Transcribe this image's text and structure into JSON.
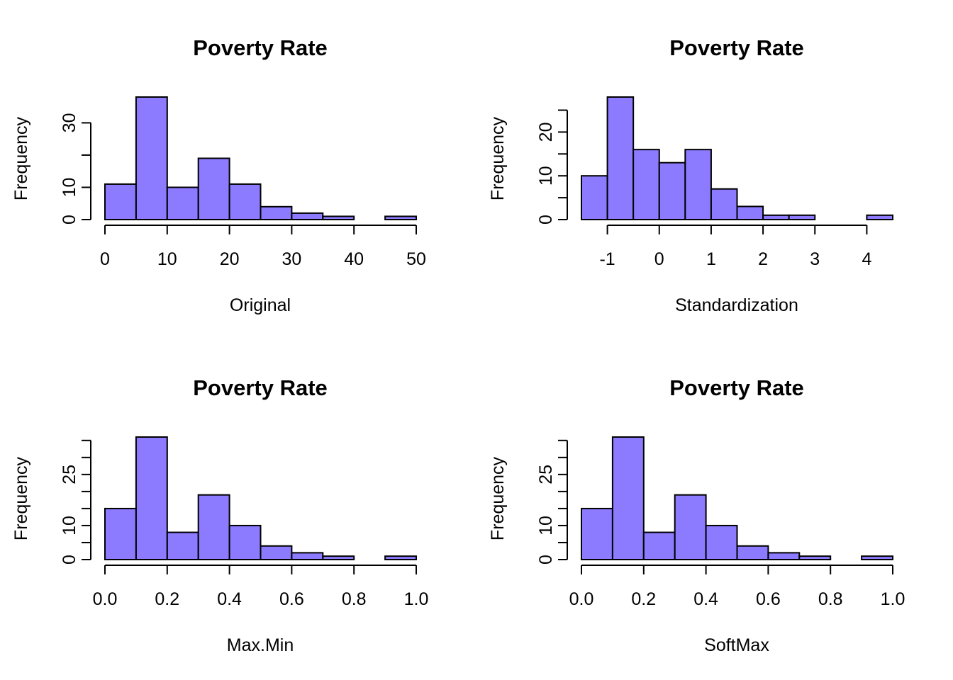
{
  "colors": {
    "bar_fill": "#8C7BFF",
    "bar_stroke": "#000000",
    "background": "#ffffff"
  },
  "chart_data": [
    {
      "type": "bar",
      "title": "Poverty Rate",
      "xlabel": "Original",
      "ylabel": "Frequency",
      "bin_edges": [
        0,
        5,
        10,
        15,
        20,
        25,
        30,
        35,
        40,
        45,
        50
      ],
      "values": [
        11,
        38,
        10,
        19,
        11,
        4,
        2,
        1,
        0,
        1
      ],
      "xticks": [
        0,
        10,
        20,
        30,
        40,
        50
      ],
      "xtick_labels": [
        "0",
        "10",
        "20",
        "30",
        "40",
        "50"
      ],
      "yticks": [
        0,
        10,
        20,
        30
      ],
      "ytick_labels": [
        "0",
        "10",
        "",
        "30"
      ],
      "xlim": [
        0,
        50
      ],
      "ylim": [
        0,
        38
      ],
      "grid": false
    },
    {
      "type": "bar",
      "title": "Poverty Rate",
      "xlabel": "Standardization",
      "ylabel": "Frequency",
      "bin_edges": [
        -1.5,
        -1,
        -0.5,
        0,
        0.5,
        1,
        1.5,
        2,
        2.5,
        3,
        3.5,
        4,
        4.5
      ],
      "values": [
        10,
        28,
        16,
        13,
        16,
        7,
        3,
        1,
        1,
        0,
        0,
        1
      ],
      "xticks": [
        -1,
        0,
        1,
        2,
        3,
        4
      ],
      "xtick_labels": [
        "-1",
        "0",
        "1",
        "2",
        "3",
        "4"
      ],
      "yticks": [
        0,
        5,
        10,
        15,
        20,
        25
      ],
      "ytick_labels": [
        "0",
        "",
        "10",
        "",
        "20",
        ""
      ],
      "xlim": [
        -1.5,
        4.5
      ],
      "ylim": [
        0,
        28
      ],
      "grid": false
    },
    {
      "type": "bar",
      "title": "Poverty Rate",
      "xlabel": "Max.Min",
      "ylabel": "Frequency",
      "bin_edges": [
        0,
        0.1,
        0.2,
        0.3,
        0.4,
        0.5,
        0.6,
        0.7,
        0.8,
        0.9,
        1.0
      ],
      "values": [
        15,
        36,
        8,
        19,
        10,
        4,
        2,
        1,
        0,
        1
      ],
      "xticks": [
        0,
        0.2,
        0.4,
        0.6,
        0.8,
        1.0
      ],
      "xtick_labels": [
        "0.0",
        "0.2",
        "0.4",
        "0.6",
        "0.8",
        "1.0"
      ],
      "yticks": [
        0,
        5,
        10,
        15,
        20,
        25,
        30,
        35
      ],
      "ytick_labels": [
        "0",
        "",
        "10",
        "",
        "",
        "25",
        "",
        ""
      ],
      "xlim": [
        0,
        1
      ],
      "ylim": [
        0,
        36
      ],
      "grid": false
    },
    {
      "type": "bar",
      "title": "Poverty Rate",
      "xlabel": "SoftMax",
      "ylabel": "Frequency",
      "bin_edges": [
        0,
        0.1,
        0.2,
        0.3,
        0.4,
        0.5,
        0.6,
        0.7,
        0.8,
        0.9,
        1.0
      ],
      "values": [
        15,
        36,
        8,
        19,
        10,
        4,
        2,
        1,
        0,
        1
      ],
      "xticks": [
        0,
        0.2,
        0.4,
        0.6,
        0.8,
        1.0
      ],
      "xtick_labels": [
        "0.0",
        "0.2",
        "0.4",
        "0.6",
        "0.8",
        "1.0"
      ],
      "yticks": [
        0,
        5,
        10,
        15,
        20,
        25,
        30,
        35
      ],
      "ytick_labels": [
        "0",
        "",
        "10",
        "",
        "",
        "25",
        "",
        ""
      ],
      "xlim": [
        0,
        1
      ],
      "ylim": [
        0,
        36
      ],
      "grid": false
    }
  ]
}
